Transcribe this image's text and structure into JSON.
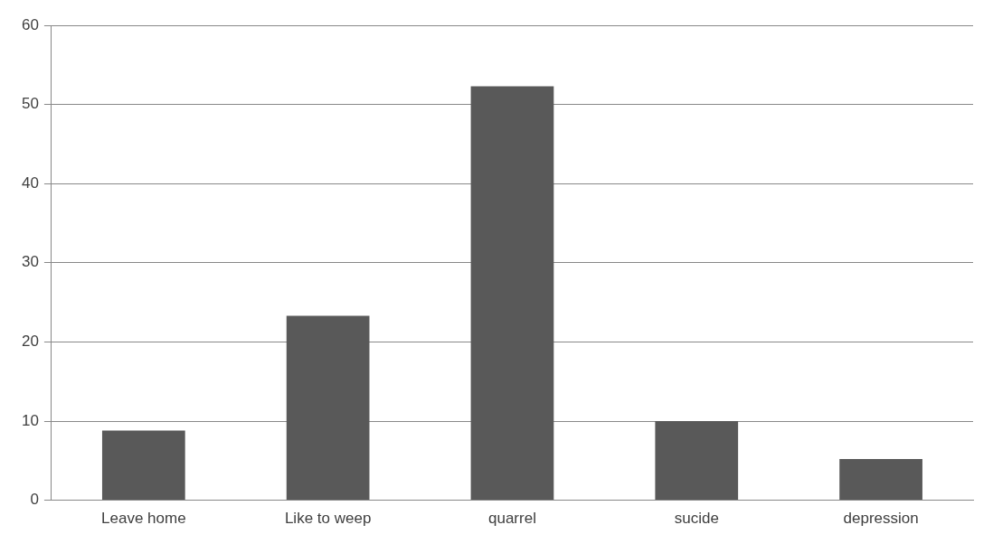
{
  "chart_data": {
    "type": "bar",
    "categories": [
      "Leave home",
      "Like to weep",
      "quarrel",
      "sucide",
      "depression"
    ],
    "values": [
      8.8,
      23.3,
      52.3,
      10,
      5.2
    ],
    "color": "#595959",
    "ylim": [
      0,
      60
    ],
    "yticks": [
      0,
      10,
      20,
      30,
      40,
      50,
      60
    ],
    "grid": "y",
    "legend": false
  }
}
